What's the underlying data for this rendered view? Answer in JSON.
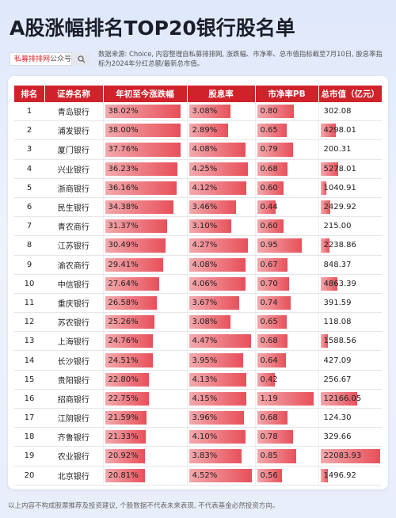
{
  "title": "A股涨幅排名TOP20银行股名单",
  "brand": {
    "name": "私募排排网",
    "suffix": "公众号",
    "icon": "search-icon"
  },
  "source_note": "数据来源: Choice, 内容整理自私募排排网, 涨跌幅、市净率、总市值指标截至7月10日, 股息率指标为2024年分红总额/最新总市值。",
  "table": {
    "headers": [
      "排名",
      "证券名称",
      "年初至今涨跌幅",
      "股息率",
      "市净率PB",
      "总市值（亿元）"
    ],
    "rows": [
      {
        "rank": "1",
        "name": "青岛银行",
        "change": "38.02%",
        "change_pct": 38.02,
        "dividend": "3.08%",
        "dividend_pct": 3.08,
        "pb": "0.80",
        "pb_val": 0.8,
        "cap": "302.08",
        "cap_val": 302.08
      },
      {
        "rank": "2",
        "name": "浦发银行",
        "change": "38.00%",
        "change_pct": 38.0,
        "dividend": "2.89%",
        "dividend_pct": 2.89,
        "pb": "0.65",
        "pb_val": 0.65,
        "cap": "4298.01",
        "cap_val": 4298.01
      },
      {
        "rank": "3",
        "name": "厦门银行",
        "change": "37.76%",
        "change_pct": 37.76,
        "dividend": "4.08%",
        "dividend_pct": 4.08,
        "pb": "0.79",
        "pb_val": 0.79,
        "cap": "200.31",
        "cap_val": 200.31
      },
      {
        "rank": "4",
        "name": "兴业银行",
        "change": "36.23%",
        "change_pct": 36.23,
        "dividend": "4.25%",
        "dividend_pct": 4.25,
        "pb": "0.68",
        "pb_val": 0.68,
        "cap": "5278.01",
        "cap_val": 5278.01
      },
      {
        "rank": "5",
        "name": "浙商银行",
        "change": "36.16%",
        "change_pct": 36.16,
        "dividend": "4.12%",
        "dividend_pct": 4.12,
        "pb": "0.60",
        "pb_val": 0.6,
        "cap": "1040.91",
        "cap_val": 1040.91
      },
      {
        "rank": "6",
        "name": "民生银行",
        "change": "34.38%",
        "change_pct": 34.38,
        "dividend": "3.46%",
        "dividend_pct": 3.46,
        "pb": "0.44",
        "pb_val": 0.44,
        "cap": "2429.92",
        "cap_val": 2429.92
      },
      {
        "rank": "7",
        "name": "青农商行",
        "change": "31.37%",
        "change_pct": 31.37,
        "dividend": "3.10%",
        "dividend_pct": 3.1,
        "pb": "0.60",
        "pb_val": 0.6,
        "cap": "215.00",
        "cap_val": 215.0
      },
      {
        "rank": "8",
        "name": "江苏银行",
        "change": "30.49%",
        "change_pct": 30.49,
        "dividend": "4.27%",
        "dividend_pct": 4.27,
        "pb": "0.95",
        "pb_val": 0.95,
        "cap": "2238.86",
        "cap_val": 2238.86
      },
      {
        "rank": "9",
        "name": "渝农商行",
        "change": "29.41%",
        "change_pct": 29.41,
        "dividend": "4.08%",
        "dividend_pct": 4.08,
        "pb": "0.67",
        "pb_val": 0.67,
        "cap": "848.37",
        "cap_val": 848.37
      },
      {
        "rank": "10",
        "name": "中信银行",
        "change": "27.64%",
        "change_pct": 27.64,
        "dividend": "4.06%",
        "dividend_pct": 4.06,
        "pb": "0.70",
        "pb_val": 0.7,
        "cap": "4863.39",
        "cap_val": 4863.39
      },
      {
        "rank": "11",
        "name": "重庆银行",
        "change": "26.58%",
        "change_pct": 26.58,
        "dividend": "3.67%",
        "dividend_pct": 3.67,
        "pb": "0.74",
        "pb_val": 0.74,
        "cap": "391.59",
        "cap_val": 391.59
      },
      {
        "rank": "12",
        "name": "苏农银行",
        "change": "25.26%",
        "change_pct": 25.26,
        "dividend": "3.08%",
        "dividend_pct": 3.08,
        "pb": "0.65",
        "pb_val": 0.65,
        "cap": "118.08",
        "cap_val": 118.08
      },
      {
        "rank": "13",
        "name": "上海银行",
        "change": "24.76%",
        "change_pct": 24.76,
        "dividend": "4.47%",
        "dividend_pct": 4.47,
        "pb": "0.68",
        "pb_val": 0.68,
        "cap": "1588.56",
        "cap_val": 1588.56
      },
      {
        "rank": "14",
        "name": "长沙银行",
        "change": "24.51%",
        "change_pct": 24.51,
        "dividend": "3.95%",
        "dividend_pct": 3.95,
        "pb": "0.64",
        "pb_val": 0.64,
        "cap": "427.09",
        "cap_val": 427.09
      },
      {
        "rank": "15",
        "name": "贵阳银行",
        "change": "22.80%",
        "change_pct": 22.8,
        "dividend": "4.13%",
        "dividend_pct": 4.13,
        "pb": "0.42",
        "pb_val": 0.42,
        "cap": "256.67",
        "cap_val": 256.67
      },
      {
        "rank": "16",
        "name": "招商银行",
        "change": "22.75%",
        "change_pct": 22.75,
        "dividend": "4.15%",
        "dividend_pct": 4.15,
        "pb": "1.19",
        "pb_val": 1.19,
        "cap": "12166.05",
        "cap_val": 12166.05
      },
      {
        "rank": "17",
        "name": "江阴银行",
        "change": "21.59%",
        "change_pct": 21.59,
        "dividend": "3.96%",
        "dividend_pct": 3.96,
        "pb": "0.68",
        "pb_val": 0.68,
        "cap": "124.30",
        "cap_val": 124.3
      },
      {
        "rank": "18",
        "name": "齐鲁银行",
        "change": "21.33%",
        "change_pct": 21.33,
        "dividend": "4.10%",
        "dividend_pct": 4.1,
        "pb": "0.78",
        "pb_val": 0.78,
        "cap": "329.66",
        "cap_val": 329.66
      },
      {
        "rank": "19",
        "name": "农业银行",
        "change": "20.92%",
        "change_pct": 20.92,
        "dividend": "3.83%",
        "dividend_pct": 3.83,
        "pb": "0.85",
        "pb_val": 0.85,
        "cap": "22083.93",
        "cap_val": 22083.93
      },
      {
        "rank": "20",
        "name": "北京银行",
        "change": "20.81%",
        "change_pct": 20.81,
        "dividend": "4.52%",
        "dividend_pct": 4.52,
        "pb": "0.56",
        "pb_val": 0.56,
        "cap": "1496.92",
        "cap_val": 1496.92
      }
    ]
  },
  "footer": "以上内容不构成股票推荐及投资建议, 个股数据不代表未来表现, 不代表基金必然投资方向。",
  "colors": {
    "header_red": "#d0222b",
    "bar_light": "#f2a9ad",
    "bar_dark": "#e8505a"
  }
}
